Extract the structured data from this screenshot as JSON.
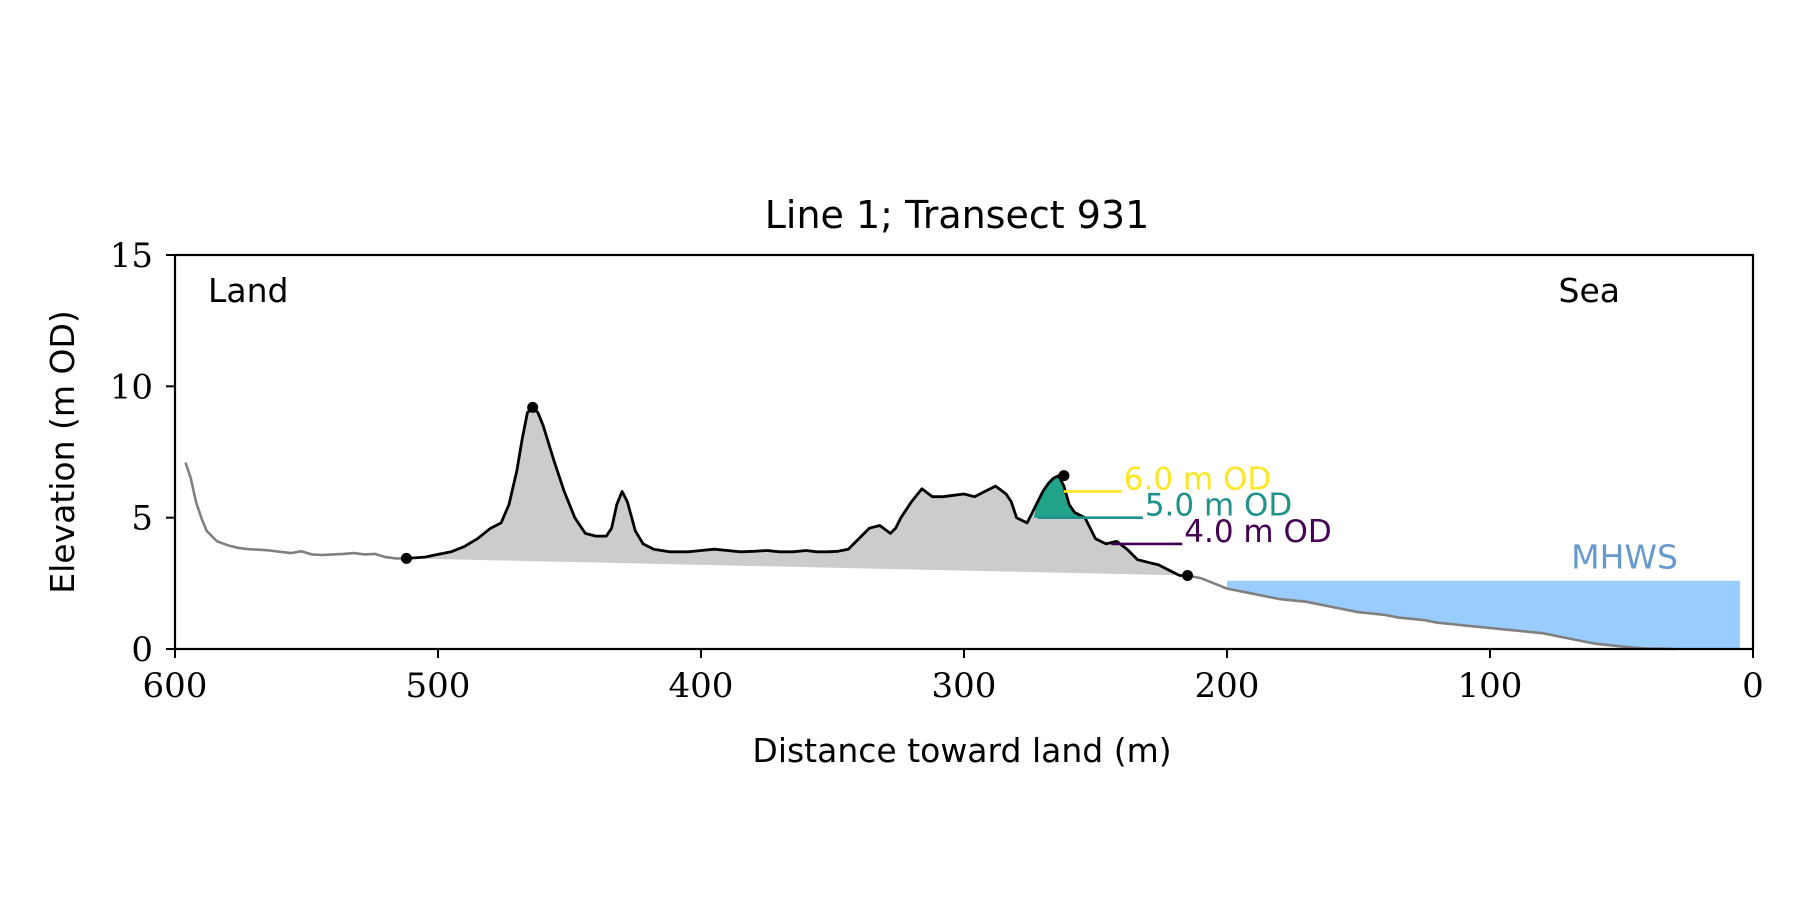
{
  "chart_data": {
    "type": "area",
    "title": "Line 1; Transect 931",
    "xlabel": "Distance toward land (m)",
    "ylabel": "Elevation (m OD)",
    "xlim": [
      600,
      0
    ],
    "ylim": [
      0,
      15
    ],
    "x_ticks": [
      600,
      500,
      400,
      300,
      200,
      100,
      0
    ],
    "y_ticks": [
      0,
      5,
      10,
      15
    ],
    "x_tick_labels": [
      "600",
      "500",
      "400",
      "300",
      "200",
      "100",
      "0"
    ],
    "y_tick_labels": [
      "0",
      "5",
      "10",
      "15"
    ],
    "grid": false,
    "corner_labels": {
      "left": "Land",
      "right": "Sea"
    },
    "mhws": {
      "label": "MHWS",
      "elevation": 2.6,
      "x_range": [
        200,
        5
      ],
      "color": "#99ccff",
      "label_color": "#6699cc"
    },
    "colors": {
      "profile_full": "#808080",
      "profile_dune": "#000000",
      "dune_fill": "#cccccc",
      "contour_6": "#fde725",
      "contour_5": "#21918c",
      "contour_4": "#440154",
      "contour_fill_5": "#21a38a"
    },
    "profile_full": {
      "x": [
        596,
        594,
        592,
        590,
        588,
        586,
        584,
        580,
        576,
        572,
        568,
        564,
        560,
        556,
        552,
        548,
        544,
        540,
        536,
        532,
        528,
        524,
        520,
        516,
        512
      ],
      "y": [
        7.1,
        6.5,
        5.6,
        5.0,
        4.5,
        4.3,
        4.1,
        3.95,
        3.85,
        3.8,
        3.78,
        3.75,
        3.7,
        3.65,
        3.72,
        3.6,
        3.58,
        3.6,
        3.62,
        3.65,
        3.6,
        3.62,
        3.5,
        3.45,
        3.45
      ]
    },
    "profile_sea": {
      "x": [
        215,
        210,
        205,
        200,
        195,
        190,
        185,
        180,
        175,
        170,
        165,
        160,
        155,
        150,
        145,
        140,
        135,
        130,
        125,
        120,
        115,
        110,
        105,
        100,
        95,
        90,
        85,
        80,
        75,
        70,
        65,
        60,
        55,
        50,
        45,
        40,
        35,
        30
      ],
      "y": [
        2.8,
        2.7,
        2.5,
        2.3,
        2.2,
        2.1,
        2.0,
        1.9,
        1.85,
        1.8,
        1.7,
        1.6,
        1.5,
        1.4,
        1.35,
        1.3,
        1.2,
        1.15,
        1.1,
        1.0,
        0.95,
        0.9,
        0.85,
        0.8,
        0.75,
        0.7,
        0.65,
        0.6,
        0.5,
        0.4,
        0.3,
        0.2,
        0.15,
        0.1,
        0.05,
        0.02,
        0.01,
        0.0
      ]
    },
    "profile_dune": {
      "x": [
        512,
        505,
        500,
        495,
        490,
        485,
        480,
        476,
        473,
        470,
        468,
        466,
        464,
        462,
        460,
        456,
        452,
        448,
        444,
        440,
        436,
        434,
        432,
        430,
        428,
        425,
        422,
        418,
        412,
        405,
        400,
        395,
        390,
        385,
        380,
        375,
        370,
        365,
        360,
        356,
        352,
        348,
        344,
        340,
        336,
        332,
        328,
        326,
        324,
        320,
        316,
        312,
        308,
        304,
        300,
        296,
        292,
        288,
        284,
        282,
        280,
        276,
        274,
        272,
        270,
        268,
        266,
        264,
        262,
        260,
        258,
        254,
        250,
        246,
        242,
        238,
        234,
        230,
        226,
        222,
        218,
        215
      ],
      "y": [
        3.45,
        3.5,
        3.6,
        3.7,
        3.9,
        4.2,
        4.6,
        4.8,
        5.5,
        6.8,
        8.0,
        9.0,
        9.2,
        9.0,
        8.5,
        7.2,
        6.0,
        5.0,
        4.4,
        4.3,
        4.3,
        4.6,
        5.5,
        6.0,
        5.6,
        4.5,
        4.0,
        3.8,
        3.7,
        3.7,
        3.75,
        3.8,
        3.75,
        3.7,
        3.72,
        3.75,
        3.7,
        3.7,
        3.75,
        3.7,
        3.7,
        3.72,
        3.8,
        4.2,
        4.6,
        4.7,
        4.4,
        4.6,
        5.0,
        5.6,
        6.1,
        5.8,
        5.8,
        5.85,
        5.9,
        5.8,
        6.0,
        6.2,
        5.9,
        5.6,
        5.0,
        4.8,
        5.2,
        5.6,
        6.0,
        6.3,
        6.5,
        6.6,
        6.2,
        5.5,
        5.2,
        5.0,
        4.2,
        4.0,
        4.1,
        3.8,
        3.4,
        3.3,
        3.2,
        3.0,
        2.8,
        2.8
      ]
    },
    "dune_fill": {
      "base_start": [
        512,
        3.45
      ],
      "base_end": [
        215,
        2.8
      ]
    },
    "key_points": [
      {
        "x": 512,
        "y": 3.45,
        "role": "landward toe"
      },
      {
        "x": 464,
        "y": 9.2,
        "role": "highest crest"
      },
      {
        "x": 262,
        "y": 6.6,
        "role": "seaward crest"
      },
      {
        "x": 215,
        "y": 2.8,
        "role": "seaward toe"
      }
    ],
    "contours": [
      {
        "label": "6.0 m OD",
        "elevation": 6.0,
        "x_start": 262,
        "x_end": 240,
        "color": "#fde725",
        "fill_color": "#fde725",
        "fill_x": [
          266,
          262,
          258
        ]
      },
      {
        "label": "5.0 m OD",
        "elevation": 5.0,
        "x_start": 272,
        "x_end": 232,
        "color": "#21918c",
        "fill_color": "#21a38a",
        "fill_x": [
          272,
          262,
          254
        ]
      },
      {
        "label": "4.0 m OD",
        "elevation": 4.0,
        "x_start": 244,
        "x_end": 217,
        "color": "#440154",
        "fill_color": null,
        "fill_x": null
      }
    ]
  }
}
